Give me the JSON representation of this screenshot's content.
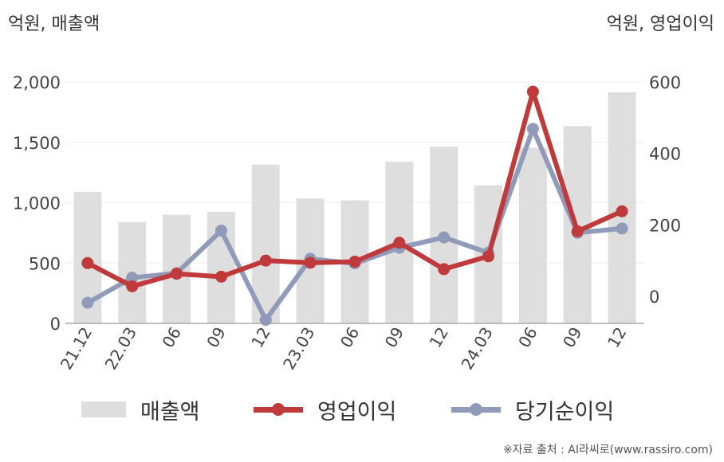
{
  "units": {
    "left": "억원, 매출액",
    "right": "억원, 영업이익"
  },
  "legend": {
    "revenue": "매출액",
    "operating_profit": "영업이익",
    "net_income": "당기순이익"
  },
  "source": "※자료 출처 : AI라씨로(www.rassiro.com)",
  "colors": {
    "revenue": "#dedede",
    "operating_profit": "#c0393b",
    "net_income": "#8f9bb8",
    "axis": "#aaaaaa",
    "grid": "#eeeeee"
  },
  "chart_data": {
    "type": "bar",
    "categories": [
      "21.12",
      "22.03",
      "06",
      "09",
      "12",
      "23.03",
      "06",
      "09",
      "12",
      "24.03",
      "06",
      "09",
      "12"
    ],
    "y_left": {
      "ylim": [
        0,
        2000
      ],
      "ticks": [
        0,
        500,
        1000,
        1500,
        2000
      ],
      "tick_labels": [
        "0",
        "500",
        "1,000",
        "1,500",
        "2,000"
      ]
    },
    "y_right": {
      "ylim": [
        -75,
        600
      ],
      "ticks": [
        0,
        200,
        400,
        600
      ],
      "tick_labels": [
        "0",
        "200",
        "400",
        "600"
      ]
    },
    "grid": true,
    "legend_position": "bottom",
    "series": [
      {
        "name": "매출액",
        "type": "bar",
        "axis": "left",
        "values": [
          1090,
          840,
          900,
          925,
          1315,
          1035,
          1020,
          1340,
          1465,
          1145,
          1455,
          1635,
          1915
        ]
      },
      {
        "name": "영업이익",
        "type": "line",
        "axis": "right",
        "values": [
          93,
          28,
          63,
          55,
          100,
          94,
          97,
          150,
          76,
          112,
          573,
          182,
          238
        ]
      },
      {
        "name": "당기순이익",
        "type": "line",
        "axis": "right",
        "values": [
          -18,
          52,
          65,
          184,
          -66,
          105,
          92,
          136,
          165,
          122,
          469,
          178,
          190
        ]
      }
    ]
  }
}
